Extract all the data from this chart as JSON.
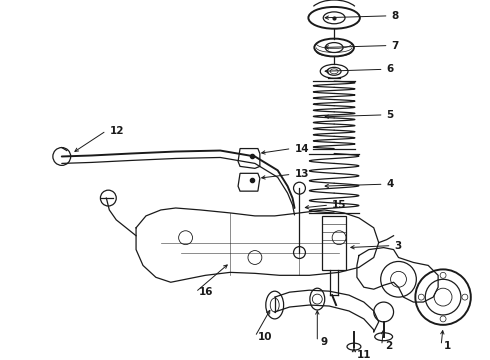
{
  "bg_color": "#ffffff",
  "line_color": "#1a1a1a",
  "fig_width": 4.9,
  "fig_height": 3.6,
  "dpi": 100,
  "label_fs": 7.5,
  "lw": 0.9
}
